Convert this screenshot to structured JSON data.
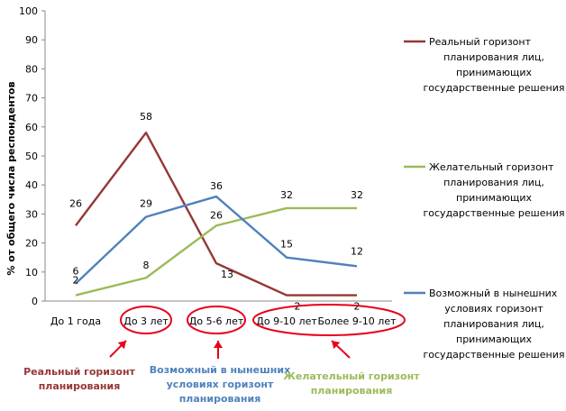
{
  "chart_data": {
    "type": "line",
    "ylabel": "% от общего числа респондентов",
    "ylim": [
      0,
      100
    ],
    "yticks": [
      0,
      10,
      20,
      30,
      40,
      50,
      60,
      70,
      80,
      90,
      100
    ],
    "categories": [
      "До 1 года",
      "До 3 лет",
      "До 5-6 лет",
      "До 9-10 лет",
      "Более 9-10 лет"
    ],
    "grid": false,
    "legend_position": "right",
    "series": [
      {
        "name": "Реальный горизонт планирования лиц, принимающих государственные решения",
        "legend_lines": [
          "Реальный горизонт",
          "планирования лиц,",
          "принимающих",
          "государственные решения"
        ],
        "color": "#953735",
        "values": [
          26,
          58,
          13,
          2,
          2
        ],
        "labels": [
          "26",
          "58",
          "13",
          "2",
          "2"
        ]
      },
      {
        "name": "Желательный горизонт планирования лиц, принимающих государственные решения",
        "legend_lines": [
          "Желательный горизонт",
          "планирования лиц,",
          "принимающих",
          "государственные решения"
        ],
        "color": "#9bbb59",
        "values": [
          2,
          8,
          26,
          32,
          32
        ],
        "labels": [
          "2",
          "8",
          "26",
          "32",
          "32"
        ]
      },
      {
        "name": "Возможный в нынешних условиях горизонт планирования лиц, принимающих государственные решения",
        "legend_lines": [
          "Возможный в нынешних",
          "условиях горизонт",
          "планирования лиц,",
          "принимающих",
          "государственные решения"
        ],
        "color": "#4f81bd",
        "values": [
          6,
          29,
          36,
          15,
          12
        ],
        "labels": [
          "6",
          "29",
          "36",
          "15",
          "12"
        ]
      }
    ],
    "annotations": [
      {
        "lines": [
          "Реальный горизонт",
          "планирования"
        ],
        "color": "#953735",
        "targets": [
          "До 3 лет"
        ]
      },
      {
        "lines": [
          "Возможный в нынешних",
          "условиях горизонт",
          "планирования"
        ],
        "color": "#4f81bd",
        "targets": [
          "До 5-6 лет"
        ]
      },
      {
        "lines": [
          "Желательный горизонт",
          "планирования"
        ],
        "color": "#9bbb59",
        "targets": [
          "До 9-10 лет",
          "Более 9-10 лет"
        ]
      }
    ],
    "highlight_color": "#e8001c"
  }
}
